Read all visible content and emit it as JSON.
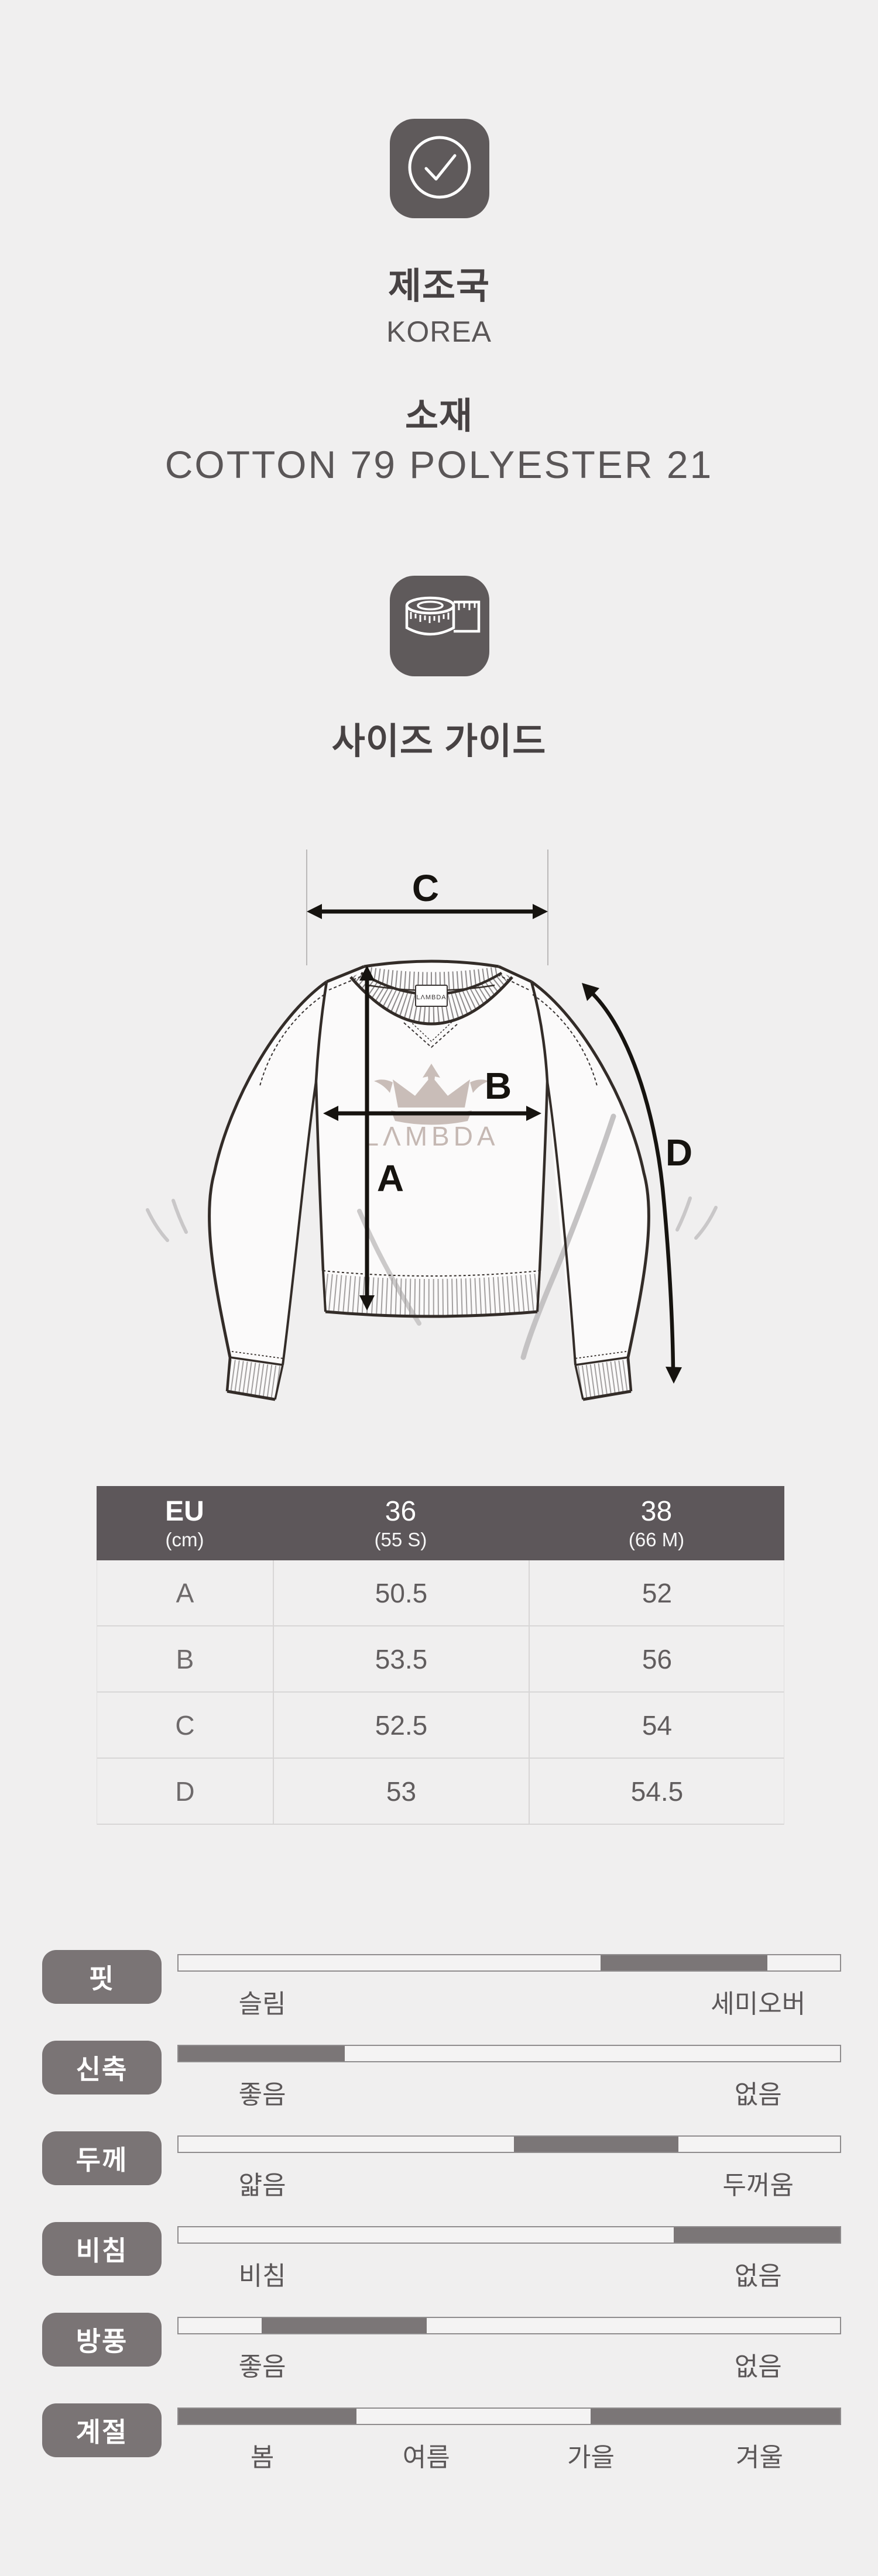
{
  "colors": {
    "background": "#f0efef",
    "icon_badge_bg": "#5f5a5b",
    "table_header_bg": "#5d575a",
    "attribute_chip_bg": "#7a7475",
    "bar_fill": "#7b7677",
    "bar_track": "#f4f3f3",
    "bar_border": "#8f8c8d",
    "heading_text": "#474243",
    "value_text": "#5a5657",
    "watermark": "#c7bbb6"
  },
  "origin": {
    "icon": "check-circle-icon",
    "title": "제조국",
    "value": "KOREA"
  },
  "material": {
    "title": "소재",
    "value": "COTTON 79 POLYESTER 21"
  },
  "size_guide": {
    "icon": "measuring-tape-icon",
    "title": "사이즈 가이드",
    "brand_watermark": "LΛMBDA",
    "neck_tag": "LΛMBDA",
    "measure_labels": [
      "A",
      "B",
      "C",
      "D"
    ]
  },
  "size_table": {
    "header": {
      "region": "EU",
      "unit": "(cm)",
      "sizes": [
        {
          "value": "36",
          "alt": "(55 S)"
        },
        {
          "value": "38",
          "alt": "(66 M)"
        }
      ]
    },
    "rows": [
      {
        "label": "A",
        "values": [
          "50.5",
          "52"
        ]
      },
      {
        "label": "B",
        "values": [
          "53.5",
          "56"
        ]
      },
      {
        "label": "C",
        "values": [
          "52.5",
          "54"
        ]
      },
      {
        "label": "D",
        "values": [
          "53",
          "54.5"
        ]
      }
    ]
  },
  "attributes": [
    {
      "label": "핏",
      "scale": [
        {
          "text": "슬림",
          "pos": 12.8
        },
        {
          "text": "세미오버",
          "pos": 87.5
        }
      ],
      "segments": [
        [
          63.8,
          89.0
        ]
      ]
    },
    {
      "label": "신축",
      "scale": [
        {
          "text": "좋음",
          "pos": 12.8
        },
        {
          "text": "없음",
          "pos": 87.5
        }
      ],
      "segments": [
        [
          0,
          25.1
        ]
      ]
    },
    {
      "label": "두께",
      "scale": [
        {
          "text": "얇음",
          "pos": 12.8
        },
        {
          "text": "두꺼움",
          "pos": 87.5
        }
      ],
      "segments": [
        [
          50.7,
          75.6
        ]
      ]
    },
    {
      "label": "비침",
      "scale": [
        {
          "text": "비침",
          "pos": 12.8
        },
        {
          "text": "없음",
          "pos": 87.5
        }
      ],
      "segments": [
        [
          74.9,
          100
        ]
      ]
    },
    {
      "label": "방풍",
      "scale": [
        {
          "text": "좋음",
          "pos": 12.8
        },
        {
          "text": "없음",
          "pos": 87.5
        }
      ],
      "segments": [
        [
          12.6,
          37.5
        ]
      ]
    },
    {
      "label": "계절",
      "scale": [
        {
          "text": "봄",
          "pos": 12.8
        },
        {
          "text": "여름",
          "pos": 37.5
        },
        {
          "text": "가을",
          "pos": 62.3
        },
        {
          "text": "겨울",
          "pos": 87.7
        }
      ],
      "segments": [
        [
          0,
          26.9
        ],
        [
          62.3,
          100
        ]
      ]
    }
  ]
}
